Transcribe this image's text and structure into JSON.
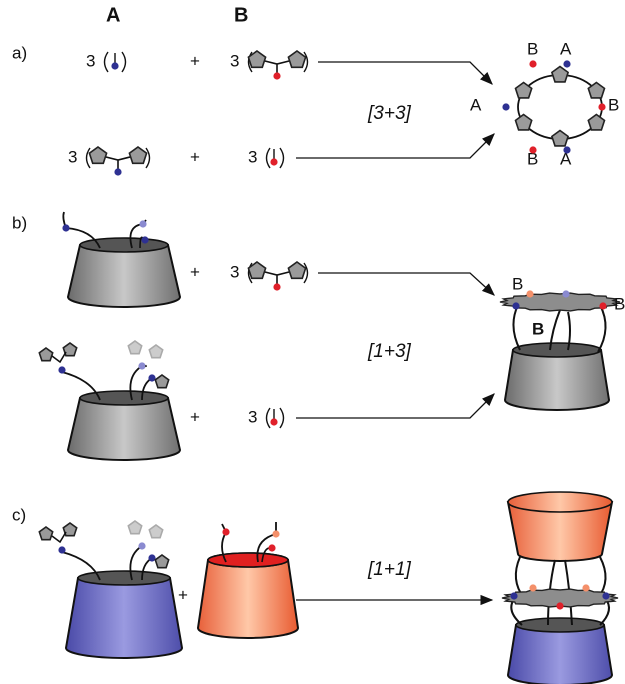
{
  "column_headers": [
    "A",
    "B"
  ],
  "panels": [
    {
      "label": "a)",
      "reactions": [
        {
          "coefficient_a": "3",
          "plus": "+",
          "coefficient_b": "3"
        },
        {
          "coefficient_a": "3",
          "plus": "+",
          "coefficient_b": "3"
        }
      ],
      "ratio": "[3+3]",
      "product_labels": [
        "B",
        "A",
        "A",
        "B",
        "B",
        "A"
      ]
    },
    {
      "label": "b)",
      "reactions": [
        {
          "plus": "+",
          "coefficient_b": "3"
        },
        {
          "plus": "+",
          "coefficient_b": "3"
        }
      ],
      "ratio": "[1+3]",
      "product_labels": [
        "B",
        "B",
        "B"
      ]
    },
    {
      "label": "c)",
      "plus": "+",
      "ratio": "[1+1]"
    }
  ]
}
